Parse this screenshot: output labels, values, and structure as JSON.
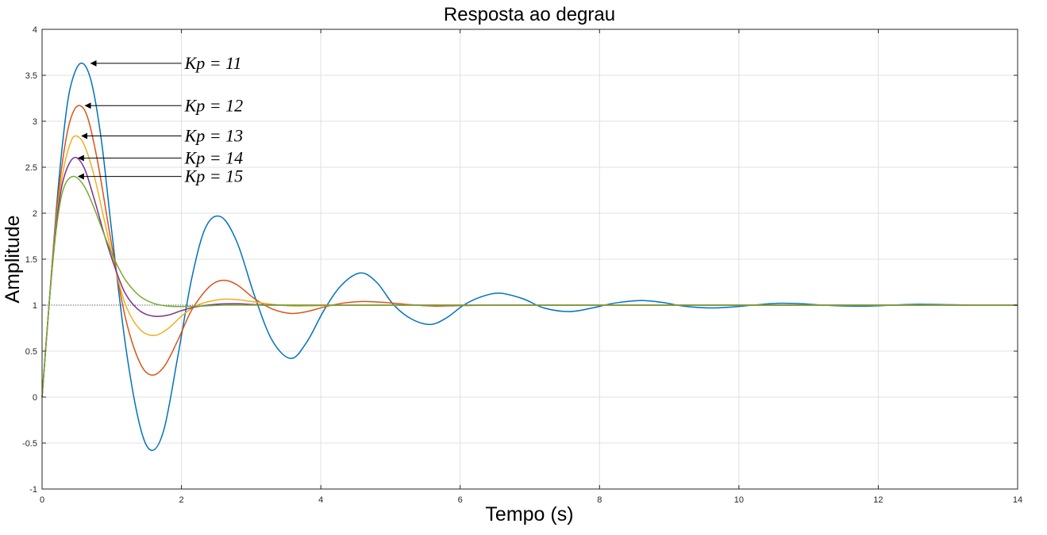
{
  "chart_data": {
    "type": "line",
    "title": "Resposta ao degrau",
    "xlabel": "Tempo (s)",
    "ylabel": "Amplitude",
    "xlim": [
      0,
      14
    ],
    "ylim": [
      -1,
      4
    ],
    "xticks": [
      0,
      2,
      4,
      6,
      8,
      10,
      12,
      14
    ],
    "yticks": [
      -1,
      -0.5,
      0,
      0.5,
      1,
      1.5,
      2,
      2.5,
      3,
      3.5,
      4
    ],
    "grid": true,
    "reference_line": {
      "y": 1,
      "style": "dotted"
    },
    "series": [
      {
        "name": "Kp = 11",
        "color": "#0072BD",
        "x": [
          0,
          0.1,
          0.2,
          0.3,
          0.4,
          0.55,
          0.7,
          0.85,
          1.0,
          1.2,
          1.4,
          1.57,
          1.75,
          1.95,
          2.15,
          2.35,
          2.57,
          2.8,
          3.05,
          3.3,
          3.57,
          3.8,
          4.05,
          4.3,
          4.57,
          4.8,
          5.05,
          5.3,
          5.57,
          5.8,
          6.05,
          6.3,
          6.57,
          6.9,
          7.2,
          7.57,
          7.9,
          8.2,
          8.57,
          8.9,
          9.2,
          9.57,
          9.9,
          10.2,
          10.57,
          10.9,
          11.2,
          11.57,
          11.9,
          12.2,
          12.57,
          13.0,
          13.5,
          14.0
        ],
        "y": [
          0,
          1.0,
          2.0,
          2.8,
          3.35,
          3.63,
          3.45,
          2.8,
          1.8,
          0.55,
          -0.3,
          -0.58,
          -0.35,
          0.45,
          1.3,
          1.85,
          1.96,
          1.68,
          1.1,
          0.62,
          0.42,
          0.6,
          0.95,
          1.22,
          1.35,
          1.25,
          1.0,
          0.85,
          0.79,
          0.86,
          1.0,
          1.09,
          1.13,
          1.07,
          0.97,
          0.93,
          0.97,
          1.02,
          1.05,
          1.03,
          0.99,
          0.97,
          0.98,
          1.0,
          1.02,
          1.015,
          1.0,
          0.99,
          0.99,
          1.0,
          1.01,
          1.005,
          1.0,
          1.0
        ]
      },
      {
        "name": "Kp = 12",
        "color": "#D95319",
        "x": [
          0,
          0.1,
          0.2,
          0.3,
          0.4,
          0.52,
          0.65,
          0.8,
          1.0,
          1.2,
          1.4,
          1.57,
          1.75,
          1.95,
          2.15,
          2.4,
          2.6,
          2.8,
          3.05,
          3.3,
          3.57,
          3.8,
          4.05,
          4.3,
          4.6,
          4.9,
          5.2,
          5.6,
          6.0,
          6.5,
          7.0,
          14.0
        ],
        "y": [
          0,
          1.0,
          1.95,
          2.6,
          3.0,
          3.17,
          3.05,
          2.55,
          1.65,
          0.85,
          0.38,
          0.24,
          0.33,
          0.62,
          0.95,
          1.2,
          1.27,
          1.22,
          1.07,
          0.96,
          0.91,
          0.93,
          0.98,
          1.02,
          1.04,
          1.03,
          1.01,
          0.99,
          0.995,
          1.0,
          1.0,
          1.0
        ]
      },
      {
        "name": "Kp = 13",
        "color": "#EDB120",
        "x": [
          0,
          0.1,
          0.2,
          0.3,
          0.4,
          0.48,
          0.6,
          0.75,
          0.9,
          1.05,
          1.2,
          1.4,
          1.6,
          1.8,
          2.0,
          2.2,
          2.4,
          2.6,
          2.8,
          3.0,
          3.3,
          3.6,
          4.0,
          4.5,
          5.0,
          14.0
        ],
        "y": [
          0,
          1.0,
          1.9,
          2.45,
          2.75,
          2.84,
          2.75,
          2.4,
          1.9,
          1.4,
          1.0,
          0.74,
          0.67,
          0.74,
          0.88,
          0.99,
          1.04,
          1.065,
          1.06,
          1.04,
          1.01,
          0.99,
          0.995,
          1.0,
          1.0,
          1.0
        ]
      },
      {
        "name": "Kp = 14",
        "color": "#7E2F8E",
        "x": [
          0,
          0.1,
          0.2,
          0.3,
          0.45,
          0.6,
          0.75,
          0.9,
          1.05,
          1.2,
          1.4,
          1.6,
          1.8,
          2.0,
          2.2,
          2.5,
          2.8,
          3.1,
          3.5,
          4.0,
          14.0
        ],
        "y": [
          0,
          1.0,
          1.85,
          2.35,
          2.6,
          2.5,
          2.15,
          1.75,
          1.4,
          1.12,
          0.94,
          0.88,
          0.89,
          0.94,
          0.98,
          1.01,
          1.015,
          1.005,
          1.0,
          1.0,
          1.0
        ]
      },
      {
        "name": "Kp = 15",
        "color": "#77AC30",
        "x": [
          0,
          0.1,
          0.2,
          0.3,
          0.44,
          0.6,
          0.75,
          0.9,
          1.05,
          1.2,
          1.4,
          1.6,
          1.8,
          2.0,
          2.3,
          2.6,
          3.0,
          3.5,
          14.0
        ],
        "y": [
          0,
          1.0,
          1.8,
          2.25,
          2.4,
          2.3,
          2.05,
          1.75,
          1.48,
          1.27,
          1.1,
          1.02,
          0.99,
          0.985,
          0.99,
          1.0,
          1.0,
          1.0,
          1.0
        ]
      }
    ],
    "annotations": [
      {
        "text": "Kp = 11",
        "arrow_to": [
          0.7,
          3.63
        ],
        "label_at": [
          2.0,
          3.63
        ]
      },
      {
        "text": "Kp = 12",
        "arrow_to": [
          0.62,
          3.17
        ],
        "label_at": [
          2.0,
          3.17
        ]
      },
      {
        "text": "Kp = 13",
        "arrow_to": [
          0.57,
          2.84
        ],
        "label_at": [
          2.0,
          2.84
        ]
      },
      {
        "text": "Kp = 14",
        "arrow_to": [
          0.52,
          2.6
        ],
        "label_at": [
          2.0,
          2.6
        ]
      },
      {
        "text": "Kp = 15",
        "arrow_to": [
          0.52,
          2.4
        ],
        "label_at": [
          2.0,
          2.4
        ]
      }
    ]
  }
}
